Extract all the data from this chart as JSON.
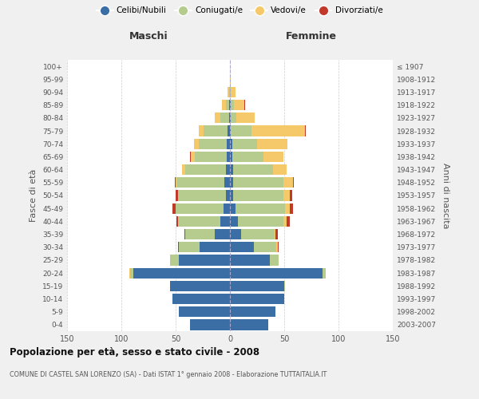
{
  "age_groups": [
    "0-4",
    "5-9",
    "10-14",
    "15-19",
    "20-24",
    "25-29",
    "30-34",
    "35-39",
    "40-44",
    "45-49",
    "50-54",
    "55-59",
    "60-64",
    "65-69",
    "70-74",
    "75-79",
    "80-84",
    "85-89",
    "90-94",
    "95-99",
    "100+"
  ],
  "birth_years": [
    "2003-2007",
    "1998-2002",
    "1993-1997",
    "1988-1992",
    "1983-1987",
    "1978-1982",
    "1973-1977",
    "1968-1972",
    "1963-1967",
    "1958-1962",
    "1953-1957",
    "1948-1952",
    "1943-1947",
    "1938-1942",
    "1933-1937",
    "1928-1932",
    "1923-1927",
    "1918-1922",
    "1913-1917",
    "1908-1912",
    "≤ 1907"
  ],
  "male": {
    "celibi": [
      37,
      47,
      53,
      55,
      89,
      47,
      28,
      14,
      9,
      6,
      4,
      5,
      4,
      3,
      3,
      2,
      1,
      1,
      0,
      0,
      0
    ],
    "coniugati": [
      0,
      0,
      0,
      0,
      3,
      8,
      19,
      27,
      39,
      44,
      44,
      44,
      37,
      29,
      26,
      22,
      8,
      3,
      1,
      0,
      0
    ],
    "vedovi": [
      0,
      0,
      0,
      0,
      1,
      0,
      0,
      0,
      0,
      0,
      0,
      1,
      3,
      4,
      4,
      5,
      5,
      3,
      1,
      0,
      0
    ],
    "divorziati": [
      0,
      0,
      0,
      0,
      0,
      0,
      1,
      1,
      1,
      3,
      2,
      1,
      0,
      1,
      0,
      0,
      0,
      0,
      0,
      0,
      0
    ]
  },
  "female": {
    "nubili": [
      35,
      42,
      50,
      50,
      85,
      37,
      22,
      10,
      7,
      5,
      3,
      3,
      3,
      2,
      2,
      1,
      1,
      1,
      0,
      0,
      0
    ],
    "coniugate": [
      0,
      0,
      0,
      1,
      3,
      8,
      21,
      31,
      42,
      46,
      46,
      46,
      37,
      29,
      23,
      19,
      5,
      3,
      1,
      0,
      0
    ],
    "vedove": [
      0,
      0,
      0,
      0,
      0,
      0,
      1,
      1,
      3,
      4,
      6,
      9,
      12,
      18,
      28,
      49,
      17,
      9,
      4,
      1,
      0
    ],
    "divorziate": [
      0,
      0,
      0,
      0,
      0,
      0,
      1,
      2,
      3,
      3,
      2,
      1,
      0,
      0,
      0,
      1,
      0,
      1,
      0,
      0,
      0
    ]
  },
  "colors": {
    "celibi": "#3a6ea5",
    "coniugati": "#b5cc8e",
    "vedovi": "#f5c96a",
    "divorziati": "#c0392b"
  },
  "title_main": "Popolazione per età, sesso e stato civile - 2008",
  "title_sub": "COMUNE DI CASTEL SAN LORENZO (SA) - Dati ISTAT 1° gennaio 2008 - Elaborazione TUTTAITALIA.IT",
  "xlabel_left": "Maschi",
  "xlabel_right": "Femmine",
  "ylabel_left": "Fasce di età",
  "ylabel_right": "Anni di nascita",
  "xlim": 150,
  "bg_color": "#f0f0f0",
  "plot_bg": "#ffffff",
  "legend_labels": [
    "Celibi/Nubili",
    "Coniugati/e",
    "Vedovi/e",
    "Divorziati/e"
  ]
}
